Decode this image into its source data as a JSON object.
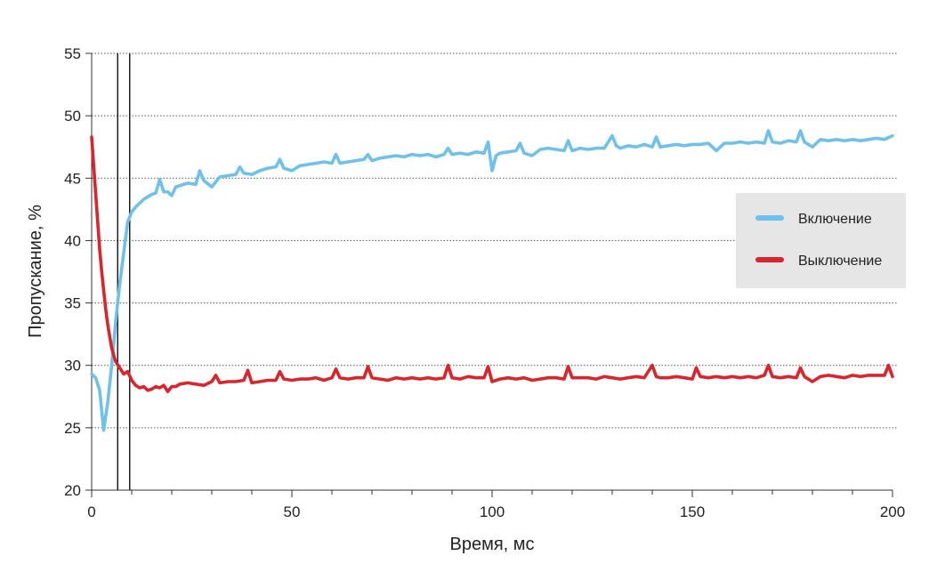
{
  "chart_data": {
    "type": "line",
    "title": "",
    "xlabel": "Время, мс",
    "ylabel": "Пропускание, %",
    "xlim": [
      0,
      200
    ],
    "ylim": [
      20,
      55
    ],
    "x_ticks": [
      0,
      50,
      100,
      150,
      200
    ],
    "y_ticks": [
      20,
      25,
      30,
      35,
      40,
      45,
      50,
      55
    ],
    "grid": "horizontal-dotted",
    "legend_position": "right",
    "markers": [
      6.5,
      9.5
    ],
    "series": [
      {
        "name": "Включение",
        "color": "#6ec1ea",
        "points": [
          [
            0,
            29.3
          ],
          [
            1,
            29
          ],
          [
            2,
            28
          ],
          [
            3,
            24.8
          ],
          [
            4,
            27
          ],
          [
            5,
            30
          ],
          [
            6,
            33.5
          ],
          [
            7,
            36.5
          ],
          [
            8,
            39
          ],
          [
            9,
            41.5
          ],
          [
            10,
            42.3
          ],
          [
            11,
            42.7
          ],
          [
            12,
            43
          ],
          [
            13,
            43.3
          ],
          [
            14,
            43.5
          ],
          [
            15,
            43.7
          ],
          [
            16,
            43.8
          ],
          [
            17,
            44.9
          ],
          [
            18,
            43.9
          ],
          [
            19,
            43.9
          ],
          [
            20,
            43.6
          ],
          [
            21,
            44.3
          ],
          [
            22,
            44.4
          ],
          [
            24,
            44.6
          ],
          [
            26,
            44.5
          ],
          [
            27,
            45.6
          ],
          [
            28,
            44.8
          ],
          [
            30,
            44.3
          ],
          [
            32,
            45.1
          ],
          [
            34,
            45.2
          ],
          [
            36,
            45.3
          ],
          [
            37,
            45.9
          ],
          [
            38,
            45.4
          ],
          [
            40,
            45.3
          ],
          [
            42,
            45.6
          ],
          [
            44,
            45.8
          ],
          [
            46,
            45.9
          ],
          [
            47,
            46.5
          ],
          [
            48,
            45.8
          ],
          [
            50,
            45.6
          ],
          [
            52,
            46.0
          ],
          [
            54,
            46.1
          ],
          [
            56,
            46.2
          ],
          [
            58,
            46.3
          ],
          [
            60,
            46.2
          ],
          [
            61,
            46.9
          ],
          [
            62,
            46.2
          ],
          [
            64,
            46.3
          ],
          [
            66,
            46.4
          ],
          [
            68,
            46.5
          ],
          [
            69,
            46.9
          ],
          [
            70,
            46.4
          ],
          [
            72,
            46.6
          ],
          [
            74,
            46.7
          ],
          [
            76,
            46.8
          ],
          [
            78,
            46.7
          ],
          [
            80,
            46.9
          ],
          [
            82,
            46.8
          ],
          [
            84,
            46.9
          ],
          [
            86,
            46.7
          ],
          [
            88,
            46.9
          ],
          [
            89,
            47.4
          ],
          [
            90,
            46.9
          ],
          [
            92,
            47.0
          ],
          [
            94,
            46.9
          ],
          [
            96,
            47.1
          ],
          [
            98,
            47.0
          ],
          [
            99,
            47.9
          ],
          [
            100,
            45.6
          ],
          [
            101,
            46.8
          ],
          [
            102,
            47.0
          ],
          [
            104,
            47.1
          ],
          [
            106,
            47.2
          ],
          [
            107,
            47.8
          ],
          [
            108,
            47.0
          ],
          [
            110,
            46.8
          ],
          [
            112,
            47.3
          ],
          [
            114,
            47.4
          ],
          [
            116,
            47.3
          ],
          [
            118,
            47.2
          ],
          [
            119,
            48.0
          ],
          [
            120,
            47.2
          ],
          [
            122,
            47.4
          ],
          [
            124,
            47.3
          ],
          [
            126,
            47.4
          ],
          [
            128,
            47.4
          ],
          [
            130,
            48.4
          ],
          [
            131,
            47.6
          ],
          [
            132,
            47.4
          ],
          [
            134,
            47.6
          ],
          [
            136,
            47.5
          ],
          [
            138,
            47.7
          ],
          [
            140,
            47.5
          ],
          [
            141,
            48.3
          ],
          [
            142,
            47.5
          ],
          [
            144,
            47.6
          ],
          [
            146,
            47.7
          ],
          [
            148,
            47.6
          ],
          [
            150,
            47.7
          ],
          [
            152,
            47.7
          ],
          [
            154,
            47.8
          ],
          [
            156,
            47.2
          ],
          [
            158,
            47.8
          ],
          [
            160,
            47.8
          ],
          [
            162,
            47.9
          ],
          [
            164,
            47.8
          ],
          [
            166,
            47.9
          ],
          [
            168,
            47.8
          ],
          [
            169,
            48.8
          ],
          [
            170,
            47.9
          ],
          [
            172,
            47.8
          ],
          [
            174,
            48.0
          ],
          [
            176,
            47.9
          ],
          [
            177,
            48.8
          ],
          [
            178,
            47.9
          ],
          [
            180,
            47.5
          ],
          [
            182,
            48.1
          ],
          [
            184,
            48.0
          ],
          [
            186,
            48.1
          ],
          [
            188,
            48.0
          ],
          [
            190,
            48.1
          ],
          [
            192,
            48.0
          ],
          [
            194,
            48.1
          ],
          [
            196,
            48.2
          ],
          [
            198,
            48.1
          ],
          [
            200,
            48.4
          ]
        ]
      },
      {
        "name": "Выключение",
        "color": "#d9252b",
        "points": [
          [
            0,
            48.3
          ],
          [
            0.5,
            46
          ],
          [
            1,
            43.8
          ],
          [
            1.5,
            41.5
          ],
          [
            2,
            39.3
          ],
          [
            2.5,
            37.5
          ],
          [
            3,
            36
          ],
          [
            3.5,
            34.5
          ],
          [
            4,
            33.3
          ],
          [
            4.5,
            32.3
          ],
          [
            5,
            31.4
          ],
          [
            5.5,
            30.8
          ],
          [
            6,
            30.3
          ],
          [
            7,
            29.8
          ],
          [
            8,
            29.3
          ],
          [
            9,
            29.5
          ],
          [
            10,
            28.8
          ],
          [
            11,
            28.4
          ],
          [
            12,
            28.2
          ],
          [
            13,
            28.3
          ],
          [
            14,
            28.0
          ],
          [
            15,
            28.1
          ],
          [
            16,
            28.3
          ],
          [
            17,
            28.2
          ],
          [
            18,
            28.4
          ],
          [
            19,
            27.9
          ],
          [
            20,
            28.3
          ],
          [
            21,
            28.3
          ],
          [
            22,
            28.5
          ],
          [
            24,
            28.6
          ],
          [
            26,
            28.5
          ],
          [
            28,
            28.4
          ],
          [
            30,
            28.7
          ],
          [
            31,
            29.2
          ],
          [
            32,
            28.6
          ],
          [
            34,
            28.7
          ],
          [
            36,
            28.7
          ],
          [
            38,
            28.8
          ],
          [
            39,
            29.6
          ],
          [
            40,
            28.6
          ],
          [
            42,
            28.7
          ],
          [
            44,
            28.8
          ],
          [
            46,
            28.8
          ],
          [
            47,
            29.5
          ],
          [
            48,
            28.9
          ],
          [
            50,
            28.8
          ],
          [
            52,
            28.9
          ],
          [
            54,
            28.9
          ],
          [
            56,
            29.0
          ],
          [
            58,
            28.8
          ],
          [
            60,
            29.0
          ],
          [
            61,
            29.7
          ],
          [
            62,
            29.0
          ],
          [
            64,
            28.9
          ],
          [
            66,
            29.0
          ],
          [
            68,
            29.0
          ],
          [
            69,
            29.9
          ],
          [
            70,
            29.0
          ],
          [
            72,
            28.9
          ],
          [
            74,
            28.8
          ],
          [
            76,
            29.0
          ],
          [
            78,
            28.9
          ],
          [
            80,
            29.0
          ],
          [
            82,
            28.9
          ],
          [
            84,
            29.0
          ],
          [
            86,
            28.9
          ],
          [
            88,
            29.0
          ],
          [
            89,
            30.0
          ],
          [
            90,
            29.0
          ],
          [
            92,
            28.9
          ],
          [
            94,
            29.1
          ],
          [
            96,
            29.0
          ],
          [
            98,
            29.0
          ],
          [
            99,
            29.9
          ],
          [
            100,
            28.7
          ],
          [
            102,
            28.9
          ],
          [
            104,
            29.0
          ],
          [
            106,
            28.9
          ],
          [
            108,
            29.0
          ],
          [
            110,
            28.8
          ],
          [
            112,
            28.9
          ],
          [
            114,
            29.0
          ],
          [
            116,
            29.0
          ],
          [
            118,
            28.9
          ],
          [
            119,
            29.9
          ],
          [
            120,
            29.0
          ],
          [
            122,
            29.0
          ],
          [
            124,
            29.0
          ],
          [
            126,
            28.9
          ],
          [
            128,
            29.1
          ],
          [
            130,
            29.0
          ],
          [
            132,
            28.9
          ],
          [
            134,
            29.0
          ],
          [
            136,
            29.1
          ],
          [
            138,
            29.0
          ],
          [
            140,
            30.0
          ],
          [
            141,
            29.1
          ],
          [
            142,
            29.0
          ],
          [
            144,
            29.0
          ],
          [
            146,
            29.1
          ],
          [
            148,
            29.0
          ],
          [
            150,
            28.9
          ],
          [
            151,
            29.8
          ],
          [
            152,
            29.1
          ],
          [
            154,
            29.0
          ],
          [
            156,
            29.1
          ],
          [
            158,
            29.0
          ],
          [
            160,
            29.1
          ],
          [
            162,
            29.0
          ],
          [
            164,
            29.1
          ],
          [
            166,
            29.0
          ],
          [
            168,
            29.2
          ],
          [
            169,
            30.0
          ],
          [
            170,
            29.1
          ],
          [
            172,
            29.0
          ],
          [
            174,
            29.1
          ],
          [
            176,
            29.0
          ],
          [
            177,
            29.8
          ],
          [
            178,
            29.1
          ],
          [
            180,
            28.7
          ],
          [
            182,
            29.1
          ],
          [
            184,
            29.2
          ],
          [
            186,
            29.1
          ],
          [
            188,
            29.0
          ],
          [
            190,
            29.2
          ],
          [
            192,
            29.1
          ],
          [
            194,
            29.2
          ],
          [
            196,
            29.2
          ],
          [
            198,
            29.2
          ],
          [
            199,
            30.0
          ],
          [
            200,
            29.1
          ]
        ]
      }
    ]
  }
}
